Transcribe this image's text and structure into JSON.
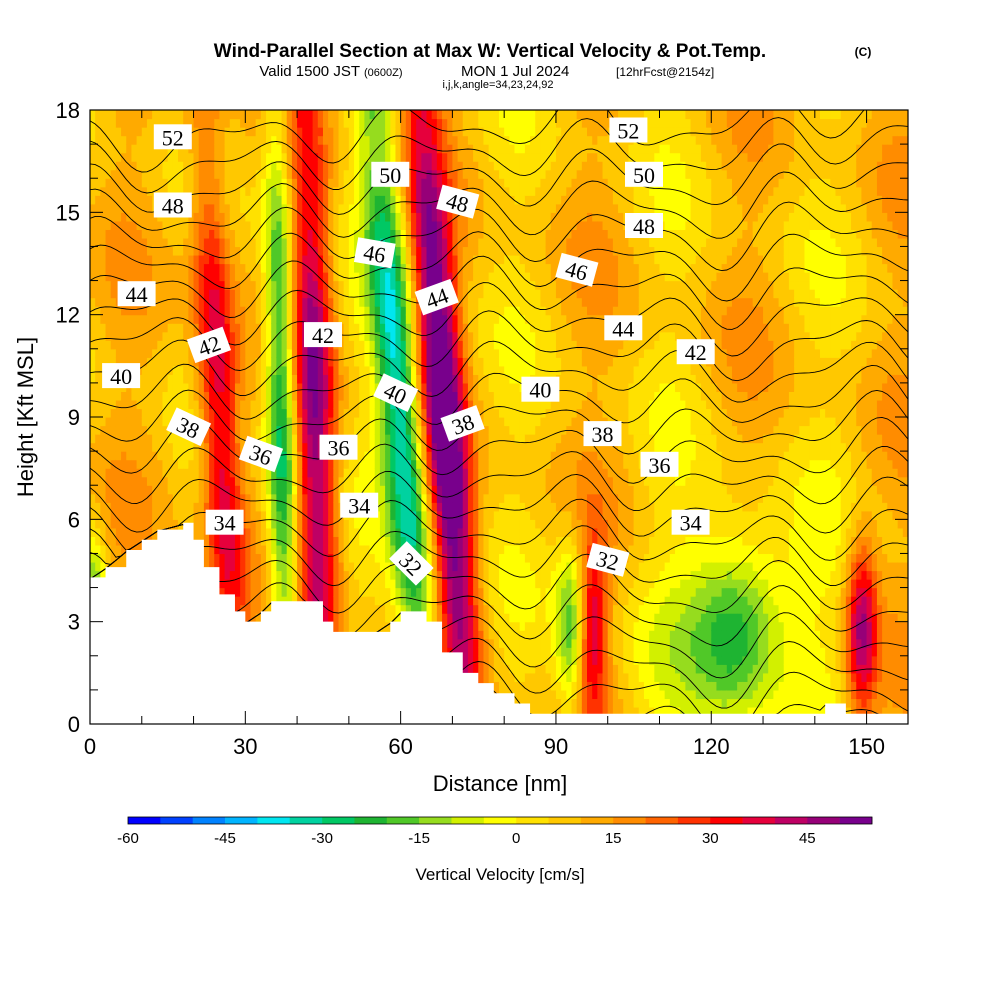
{
  "header": {
    "title": "Wind-Parallel Section at Max W: Vertical Velocity & Pot.Temp.",
    "copyright": "(C)",
    "valid_prefix": "Valid 1500 JST",
    "valid_utc": "(0600Z)",
    "valid_date": "MON 1 Jul 2024",
    "forecast": "[12hrFcst@2154z]",
    "indices": "i,j,k,angle=34,23,24,92"
  },
  "chart_data": {
    "type": "heatmap",
    "xlabel": "Distance [nm]",
    "ylabel": "Height [Kft MSL]",
    "xlim": [
      0,
      158
    ],
    "ylim": [
      0,
      18
    ],
    "x_ticks": [
      "0",
      "30",
      "60",
      "90",
      "120",
      "150"
    ],
    "y_ticks": [
      "0",
      "3",
      "6",
      "9",
      "12",
      "15",
      "18"
    ],
    "colorbar": {
      "label": "Vertical Velocity [cm/s]",
      "min": -60,
      "max": 55,
      "step": 5,
      "tick_labels": [
        "-60",
        "-45",
        "-30",
        "-15",
        "0",
        "15",
        "30",
        "45"
      ],
      "colors": [
        "#0000ff",
        "#0041ff",
        "#0082ff",
        "#00b4ff",
        "#00e6f0",
        "#00d2a0",
        "#00c864",
        "#1eb432",
        "#50c828",
        "#96dc1e",
        "#d2f000",
        "#ffff00",
        "#ffe100",
        "#ffc800",
        "#ffaa00",
        "#ff8c00",
        "#ff6400",
        "#ff3200",
        "#ff0000",
        "#e6003c",
        "#be0064",
        "#960078",
        "#78008c"
      ]
    },
    "terrain_kft": [
      [
        0,
        4.3
      ],
      [
        3,
        4.6
      ],
      [
        7,
        5.1
      ],
      [
        10,
        5.4
      ],
      [
        13,
        5.7
      ],
      [
        18,
        5.9
      ],
      [
        20,
        5.4
      ],
      [
        22,
        4.6
      ],
      [
        25,
        3.8
      ],
      [
        28,
        3.3
      ],
      [
        30,
        3.0
      ],
      [
        33,
        3.3
      ],
      [
        35,
        3.6
      ],
      [
        42,
        3.6
      ],
      [
        45,
        3.0
      ],
      [
        47,
        2.7
      ],
      [
        55,
        2.7
      ],
      [
        58,
        3.0
      ],
      [
        60,
        3.3
      ],
      [
        63,
        3.3
      ],
      [
        65,
        3.0
      ],
      [
        68,
        2.1
      ],
      [
        72,
        1.5
      ],
      [
        75,
        1.2
      ],
      [
        78,
        0.9
      ],
      [
        82,
        0.6
      ],
      [
        85,
        0.3
      ],
      [
        140,
        0.3
      ],
      [
        142,
        0.6
      ],
      [
        145,
        0.6
      ],
      [
        146,
        0.3
      ],
      [
        158,
        0.3
      ]
    ],
    "velocity_updrafts": [
      {
        "x_base": 28,
        "x_top": 22,
        "peak": 35,
        "width_nm": 4
      },
      {
        "x_base": 45,
        "x_top": 42,
        "peak": 40,
        "width_nm": 4
      },
      {
        "x_base": 73,
        "x_top": 64,
        "peak": 52,
        "width_nm": 4
      },
      {
        "x_base": 97,
        "x_top": 97,
        "peak": 32,
        "width_nm": 3
      },
      {
        "x_base": 149,
        "x_top": 149,
        "peak": 38,
        "width_nm": 3
      }
    ],
    "velocity_downdrafts": [
      {
        "x_base": 38,
        "x_top": 36,
        "peak": -40,
        "width_nm": 3
      },
      {
        "x_base": 65,
        "x_top": 55,
        "peak": -45,
        "width_nm": 4
      },
      {
        "x_base": 1,
        "x_top": 1,
        "peak": -30,
        "width_nm": 2
      },
      {
        "x_base": 93,
        "x_top": 93,
        "peak": -28,
        "width_nm": 3
      },
      {
        "x_base": 125,
        "x_top": 125,
        "peak": -25,
        "width_nm": 8
      }
    ],
    "theta_contours": {
      "levels": [
        31,
        32,
        33,
        34,
        35,
        36,
        37,
        38,
        39,
        40,
        41,
        42,
        43,
        44,
        45,
        46,
        47,
        48,
        49,
        50,
        51,
        52,
        53
      ],
      "labels": [
        {
          "text": "52",
          "x": 16,
          "y": 17.2,
          "rot": 0
        },
        {
          "text": "48",
          "x": 16,
          "y": 15.2,
          "rot": 0
        },
        {
          "text": "44",
          "x": 9,
          "y": 12.6,
          "rot": 0
        },
        {
          "text": "40",
          "x": 6,
          "y": 10.2,
          "rot": 0
        },
        {
          "text": "42",
          "x": 23,
          "y": 11.1,
          "rot": -20
        },
        {
          "text": "38",
          "x": 19,
          "y": 8.7,
          "rot": 25
        },
        {
          "text": "36",
          "x": 33,
          "y": 7.9,
          "rot": 20
        },
        {
          "text": "34",
          "x": 26,
          "y": 5.9,
          "rot": 0
        },
        {
          "text": "42",
          "x": 45,
          "y": 11.4,
          "rot": 0
        },
        {
          "text": "36",
          "x": 48,
          "y": 8.1,
          "rot": 0
        },
        {
          "text": "34",
          "x": 52,
          "y": 6.4,
          "rot": 0
        },
        {
          "text": "46",
          "x": 55,
          "y": 13.8,
          "rot": 10
        },
        {
          "text": "50",
          "x": 58,
          "y": 16.1,
          "rot": 0
        },
        {
          "text": "40",
          "x": 59,
          "y": 9.7,
          "rot": 25
        },
        {
          "text": "48",
          "x": 71,
          "y": 15.3,
          "rot": 15
        },
        {
          "text": "44",
          "x": 67,
          "y": 12.5,
          "rot": -20
        },
        {
          "text": "38",
          "x": 72,
          "y": 8.8,
          "rot": -20
        },
        {
          "text": "32",
          "x": 62,
          "y": 4.7,
          "rot": 45
        },
        {
          "text": "40",
          "x": 87,
          "y": 9.8,
          "rot": 0
        },
        {
          "text": "46",
          "x": 94,
          "y": 13.3,
          "rot": 15
        },
        {
          "text": "52",
          "x": 104,
          "y": 17.4,
          "rot": 0
        },
        {
          "text": "50",
          "x": 107,
          "y": 16.1,
          "rot": 0
        },
        {
          "text": "48",
          "x": 107,
          "y": 14.6,
          "rot": 0
        },
        {
          "text": "44",
          "x": 103,
          "y": 11.6,
          "rot": 0
        },
        {
          "text": "42",
          "x": 117,
          "y": 10.9,
          "rot": 0
        },
        {
          "text": "38",
          "x": 99,
          "y": 8.5,
          "rot": 0
        },
        {
          "text": "36",
          "x": 110,
          "y": 7.6,
          "rot": 0
        },
        {
          "text": "34",
          "x": 116,
          "y": 5.9,
          "rot": 0
        },
        {
          "text": "32",
          "x": 100,
          "y": 4.8,
          "rot": 15
        }
      ]
    }
  }
}
